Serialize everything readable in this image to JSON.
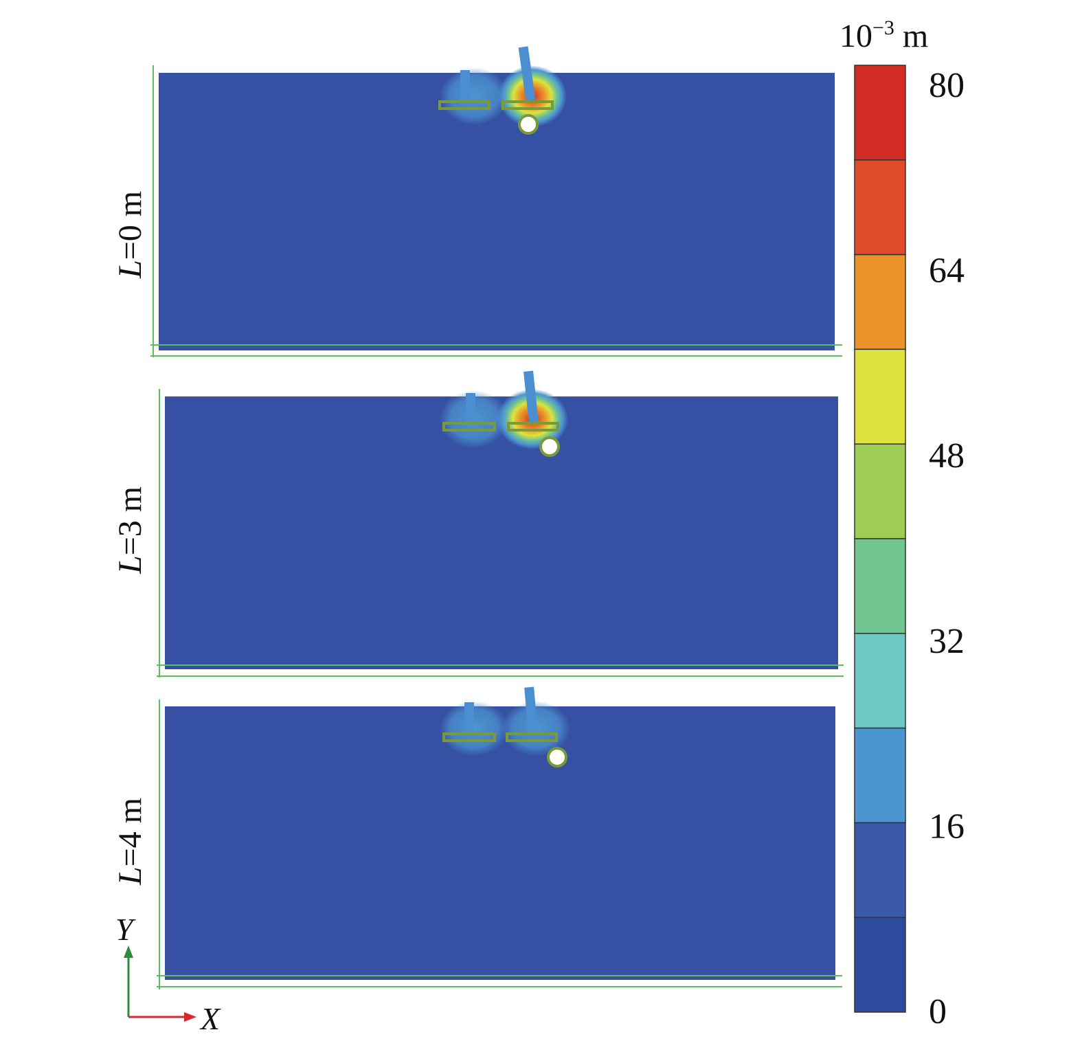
{
  "panels": [
    {
      "var": "L",
      "value": "=0 m"
    },
    {
      "var": "L",
      "value": "=3 m"
    },
    {
      "var": "L",
      "value": "=4 m"
    }
  ],
  "colorbar": {
    "unit_base": "10",
    "unit_exp": "−3",
    "unit_m": " m",
    "tick_labels": [
      "80",
      "64",
      "48",
      "32",
      "16",
      "0"
    ],
    "colors": [
      "#d42a24",
      "#df4a2a",
      "#e99329",
      "#dce33d",
      "#9dcd53",
      "#72c490",
      "#6fc8c6",
      "#4d95d1",
      "#3a5aa9",
      "#2f4b9f"
    ]
  },
  "axes": {
    "y": "Y",
    "x": "X",
    "y_color": "#2e8b3a",
    "x_color": "#d62a2a"
  },
  "domain_color": "#3651a3"
}
